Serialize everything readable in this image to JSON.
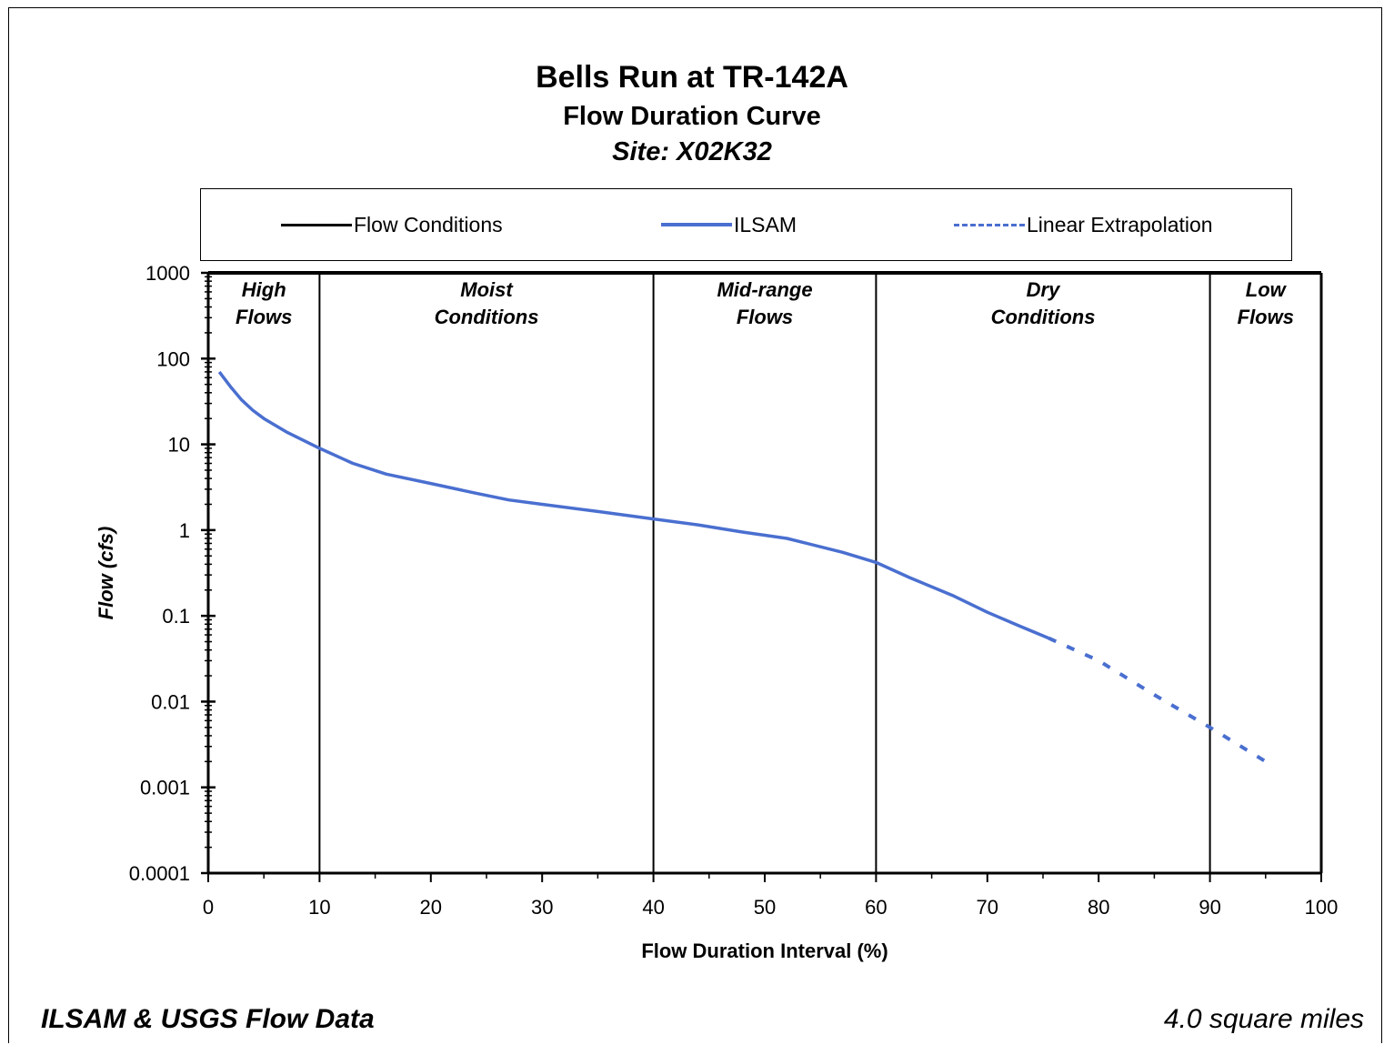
{
  "chart_data": {
    "type": "line",
    "title": "Bells Run at TR-142A",
    "subtitle": "Flow Duration Curve",
    "site": "Site:  X02K32",
    "xlabel": "Flow Duration Interval (%)",
    "ylabel": "Flow (cfs)",
    "xlim": [
      0,
      100
    ],
    "ylim": [
      0.0001,
      1000
    ],
    "yscale": "log",
    "x_ticks": [
      "0",
      "10",
      "20",
      "30",
      "40",
      "50",
      "60",
      "70",
      "80",
      "90",
      "100"
    ],
    "y_ticks": [
      "1000",
      "100",
      "10",
      "1",
      "0.1",
      "0.01",
      "0.001",
      "0.0001"
    ],
    "grid": false,
    "legend": [
      {
        "label": "Flow Conditions",
        "color": "#000000",
        "style": "solid"
      },
      {
        "label": "ILSAM",
        "color": "#4a6fd0",
        "style": "solid"
      },
      {
        "label": "Linear Extrapolation",
        "color": "#4a6fd0",
        "style": "dashed"
      }
    ],
    "legend_position": "top",
    "zones": [
      {
        "label": [
          "High",
          "Flows"
        ],
        "from": 0,
        "to": 10
      },
      {
        "label": [
          "Moist",
          "Conditions"
        ],
        "from": 10,
        "to": 40
      },
      {
        "label": [
          "Mid-range",
          "Flows"
        ],
        "from": 40,
        "to": 60
      },
      {
        "label": [
          "Dry",
          "Conditions"
        ],
        "from": 60,
        "to": 90
      },
      {
        "label": [
          "Low",
          "Flows"
        ],
        "from": 90,
        "to": 100
      }
    ],
    "zone_boundaries": [
      10,
      40,
      60,
      90
    ],
    "series": [
      {
        "name": "ILSAM",
        "color": "#4a6fd0",
        "style": "solid",
        "x": [
          1,
          2,
          3,
          4,
          5,
          7,
          10,
          13,
          16,
          20,
          24,
          27,
          30,
          35,
          40,
          44,
          48,
          52,
          57,
          60,
          63,
          67,
          70,
          73,
          75.5
        ],
        "y": [
          70,
          47,
          33,
          25,
          20,
          14,
          9,
          6,
          4.5,
          3.5,
          2.7,
          2.25,
          2,
          1.65,
          1.35,
          1.15,
          0.95,
          0.8,
          0.55,
          0.42,
          0.28,
          0.17,
          0.11,
          0.075,
          0.055
        ]
      },
      {
        "name": "Linear Extrapolation",
        "color": "#4a6fd0",
        "style": "dashed",
        "x": [
          75.5,
          80,
          85,
          90,
          95
        ],
        "y": [
          0.055,
          0.03,
          0.012,
          0.005,
          0.002
        ]
      }
    ]
  },
  "footer": {
    "left": "ILSAM & USGS Flow Data",
    "right": "4.0 square miles"
  }
}
